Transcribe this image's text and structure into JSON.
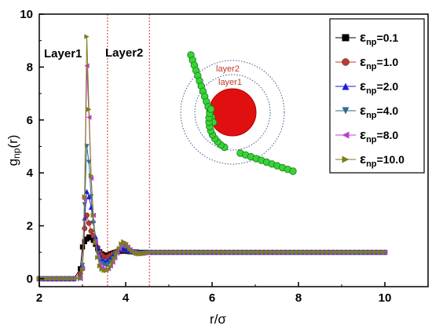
{
  "chart_data": {
    "type": "line",
    "title": "",
    "xlabel": "r/σ",
    "ylabel_main": "g",
    "ylabel_sub": "np",
    "ylabel_suffix": "(r)",
    "xlim": [
      2,
      11
    ],
    "ylim": [
      -0.3,
      10
    ],
    "xticks": [
      "2",
      "4",
      "6",
      "8",
      "10"
    ],
    "yticks": [
      "0",
      "2",
      "4",
      "6",
      "8",
      "10"
    ],
    "grid": false,
    "legend_position": "top-right",
    "legend_symbol": "ε",
    "legend_sub": "np",
    "layer_lines": [
      3.58,
      4.55
    ],
    "annotations": {
      "layer1": "Layer1",
      "layer2": "Layer2"
    },
    "inset": {
      "layer2": "layer2",
      "layer1": "layer1"
    },
    "peak_x": [
      2.95,
      3.0,
      3.05,
      3.1,
      3.15,
      3.2,
      3.25,
      3.3,
      3.35,
      3.4,
      3.45,
      3.5,
      3.55,
      3.6,
      3.65,
      3.7,
      3.75,
      3.8,
      3.85,
      3.9,
      3.95,
      4.0,
      4.05,
      4.1,
      4.15,
      4.2,
      4.25,
      4.3,
      4.35,
      4.4,
      4.45,
      4.5,
      4.6
    ],
    "series": [
      {
        "name": "=0.1",
        "marker": "square",
        "color": "#000000",
        "peak_y": [
          0.38,
          1.2,
          1.4,
          1.5,
          1.58,
          1.55,
          1.45,
          1.3,
          1.15,
          1.02,
          0.94,
          0.9,
          0.88,
          0.9,
          0.94,
          0.97,
          1.0,
          1.02,
          1.03,
          1.04,
          1.04,
          1.04,
          1.03,
          1.02,
          1.02,
          1.01,
          1.01,
          1.0,
          1.0,
          1.0,
          1.0,
          1.0,
          1.0
        ]
      },
      {
        "name": "=1.0",
        "marker": "circle",
        "color": "#c0392b",
        "peak_y": [
          0.2,
          0.38,
          1.9,
          2.4,
          2.1,
          1.8,
          1.62,
          1.4,
          1.18,
          1.0,
          0.9,
          0.84,
          0.82,
          0.85,
          0.9,
          0.95,
          1.0,
          1.04,
          1.06,
          1.08,
          1.08,
          1.07,
          1.05,
          1.03,
          1.02,
          1.01,
          1.0,
          0.99,
          0.99,
          0.99,
          1.0,
          1.0,
          1.0
        ]
      },
      {
        "name": "=2.0",
        "marker": "triangle-up",
        "color": "#1a1adb",
        "peak_y": [
          0.05,
          0.5,
          2.3,
          3.3,
          3.1,
          2.7,
          2.2,
          1.6,
          1.2,
          0.9,
          0.74,
          0.68,
          0.66,
          0.7,
          0.78,
          0.86,
          0.95,
          1.04,
          1.1,
          1.14,
          1.15,
          1.12,
          1.08,
          1.05,
          1.02,
          1.0,
          0.98,
          0.97,
          0.97,
          0.98,
          0.99,
          1.0,
          1.0
        ]
      },
      {
        "name": "=4.0",
        "marker": "triangle-down",
        "color": "#2e6e8e",
        "peak_y": [
          0.02,
          0.5,
          2.8,
          5.0,
          4.4,
          3.1,
          2.1,
          1.4,
          0.95,
          0.7,
          0.58,
          0.52,
          0.5,
          0.55,
          0.64,
          0.75,
          0.88,
          1.0,
          1.12,
          1.2,
          1.24,
          1.2,
          1.14,
          1.08,
          1.03,
          0.99,
          0.97,
          0.96,
          0.96,
          0.97,
          0.98,
          0.99,
          1.0
        ]
      },
      {
        "name": "=8.0",
        "marker": "triangle-left",
        "color": "#c23bd6",
        "peak_y": [
          0.0,
          0.4,
          3.0,
          8.05,
          6.1,
          3.8,
          2.4,
          1.4,
          0.85,
          0.55,
          0.42,
          0.36,
          0.34,
          0.38,
          0.48,
          0.62,
          0.78,
          0.96,
          1.14,
          1.28,
          1.34,
          1.3,
          1.2,
          1.1,
          1.03,
          0.98,
          0.95,
          0.94,
          0.94,
          0.95,
          0.97,
          0.98,
          1.0
        ]
      },
      {
        "name": "=10.0",
        "marker": "triangle-right",
        "color": "#7d7d1a",
        "peak_y": [
          0.0,
          0.35,
          3.1,
          9.15,
          6.4,
          3.9,
          2.4,
          1.35,
          0.8,
          0.48,
          0.36,
          0.31,
          0.3,
          0.34,
          0.45,
          0.6,
          0.77,
          0.96,
          1.15,
          1.32,
          1.4,
          1.35,
          1.24,
          1.12,
          1.04,
          0.98,
          0.94,
          0.93,
          0.93,
          0.94,
          0.96,
          0.98,
          1.0
        ]
      }
    ]
  }
}
